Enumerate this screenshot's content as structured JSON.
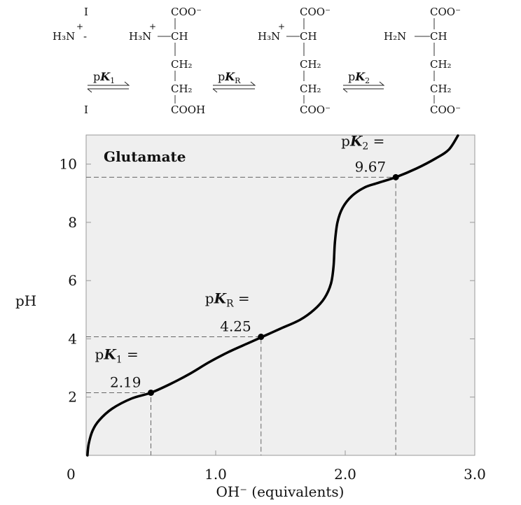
{
  "structures": [
    {
      "top": "I",
      "amine": "H₃N",
      "charge": "+",
      "bond": "-",
      "bottom": "I"
    },
    {
      "top": "COO⁻",
      "amine": "H₃N",
      "charge": "+",
      "alpha": "CH",
      "c1": "CH₂",
      "c2": "CH₂",
      "bottom": "COOH"
    },
    {
      "top": "COO⁻",
      "amine": "H₃N",
      "charge": "+",
      "alpha": "CH",
      "c1": "CH₂",
      "c2": "CH₂",
      "bottom": "COO⁻"
    },
    {
      "top": "COO⁻",
      "amine": "H₂N",
      "alpha": "CH",
      "c1": "CH₂",
      "c2": "CH₂",
      "bottom": "COO⁻"
    }
  ],
  "equilibria": [
    {
      "p": "p",
      "k": "K",
      "sub": "1"
    },
    {
      "p": "p",
      "k": "K",
      "sub": "R"
    },
    {
      "p": "p",
      "k": "K",
      "sub": "2"
    }
  ],
  "chart_data": {
    "type": "line",
    "title": "Glutamate",
    "xlabel": "OH⁻ (equivalents)",
    "ylabel": "pH",
    "xlim": [
      0,
      3.0
    ],
    "ylim": [
      0,
      11
    ],
    "xticks": [
      {
        "v": 1.0,
        "label": "1.0"
      },
      {
        "v": 2.0,
        "label": "2.0"
      },
      {
        "v": 3.0,
        "label": "3.0"
      }
    ],
    "yticks": [
      {
        "v": 2,
        "label": "2"
      },
      {
        "v": 4,
        "label": "4"
      },
      {
        "v": 6,
        "label": "6"
      },
      {
        "v": 8,
        "label": "8"
      },
      {
        "v": 10,
        "label": "10"
      }
    ],
    "origin_label": "0",
    "grid": false,
    "background": "#efefef",
    "curve": {
      "x": [
        0.01,
        0.02,
        0.05,
        0.1,
        0.2,
        0.35,
        0.5,
        0.65,
        0.8,
        0.95,
        1.1,
        1.25,
        1.35,
        1.5,
        1.65,
        1.76,
        1.84,
        1.89,
        1.91,
        1.92,
        1.94,
        1.98,
        2.05,
        2.15,
        2.25,
        2.39,
        2.55,
        2.7,
        2.8,
        2.87
      ],
      "y": [
        0.0,
        0.4,
        0.85,
        1.2,
        1.6,
        1.95,
        2.15,
        2.45,
        2.8,
        3.2,
        3.55,
        3.85,
        4.05,
        4.35,
        4.65,
        5.0,
        5.4,
        5.9,
        6.5,
        7.3,
        8.0,
        8.5,
        8.9,
        9.2,
        9.35,
        9.55,
        9.85,
        10.2,
        10.5,
        10.98
      ]
    },
    "points": [
      {
        "name": "pK1",
        "x": 0.5,
        "y": 2.15,
        "label_p": "p",
        "label_k": "K",
        "label_sub": "1",
        "label_eq": " =",
        "value": "2.19"
      },
      {
        "name": "pKR",
        "x": 1.35,
        "y": 4.07,
        "label_p": "p",
        "label_k": "K",
        "label_sub": "R",
        "label_eq": " =",
        "value": "4.25"
      },
      {
        "name": "pK2",
        "x": 2.39,
        "y": 9.55,
        "label_p": "p",
        "label_k": "K",
        "label_sub": "2",
        "label_eq": " =",
        "value": "9.67"
      }
    ]
  }
}
